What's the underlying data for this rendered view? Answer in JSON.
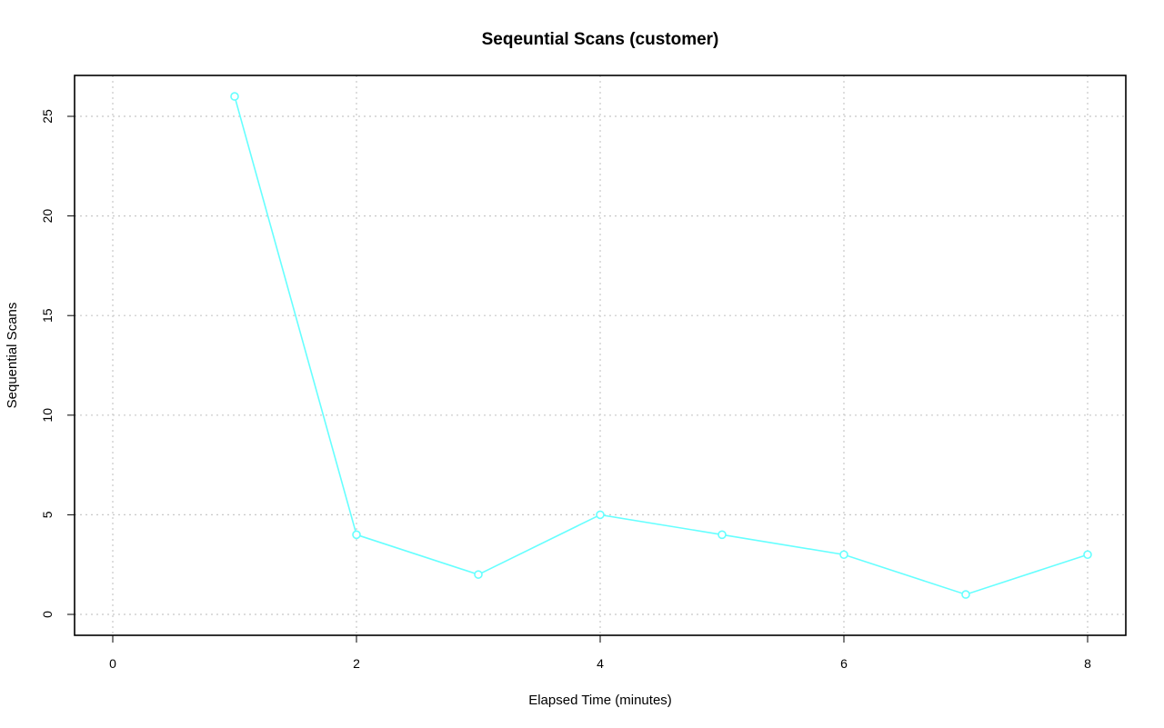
{
  "chart_data": {
    "type": "line",
    "title": "Seqeuntial Scans (customer)",
    "xlabel": "Elapsed Time (minutes)",
    "ylabel": "Sequential Scans",
    "xlim": [
      0,
      8
    ],
    "ylim": [
      0,
      26
    ],
    "x_ticks": [
      0,
      2,
      4,
      6,
      8
    ],
    "y_ticks": [
      0,
      5,
      10,
      15,
      20,
      25
    ],
    "grid": true,
    "series": [
      {
        "color": "#66ffff",
        "marker": "open-circle",
        "x": [
          1,
          2,
          3,
          4,
          5,
          6,
          7,
          8
        ],
        "y": [
          26,
          4,
          2,
          5,
          4,
          3,
          1,
          3
        ]
      }
    ]
  }
}
